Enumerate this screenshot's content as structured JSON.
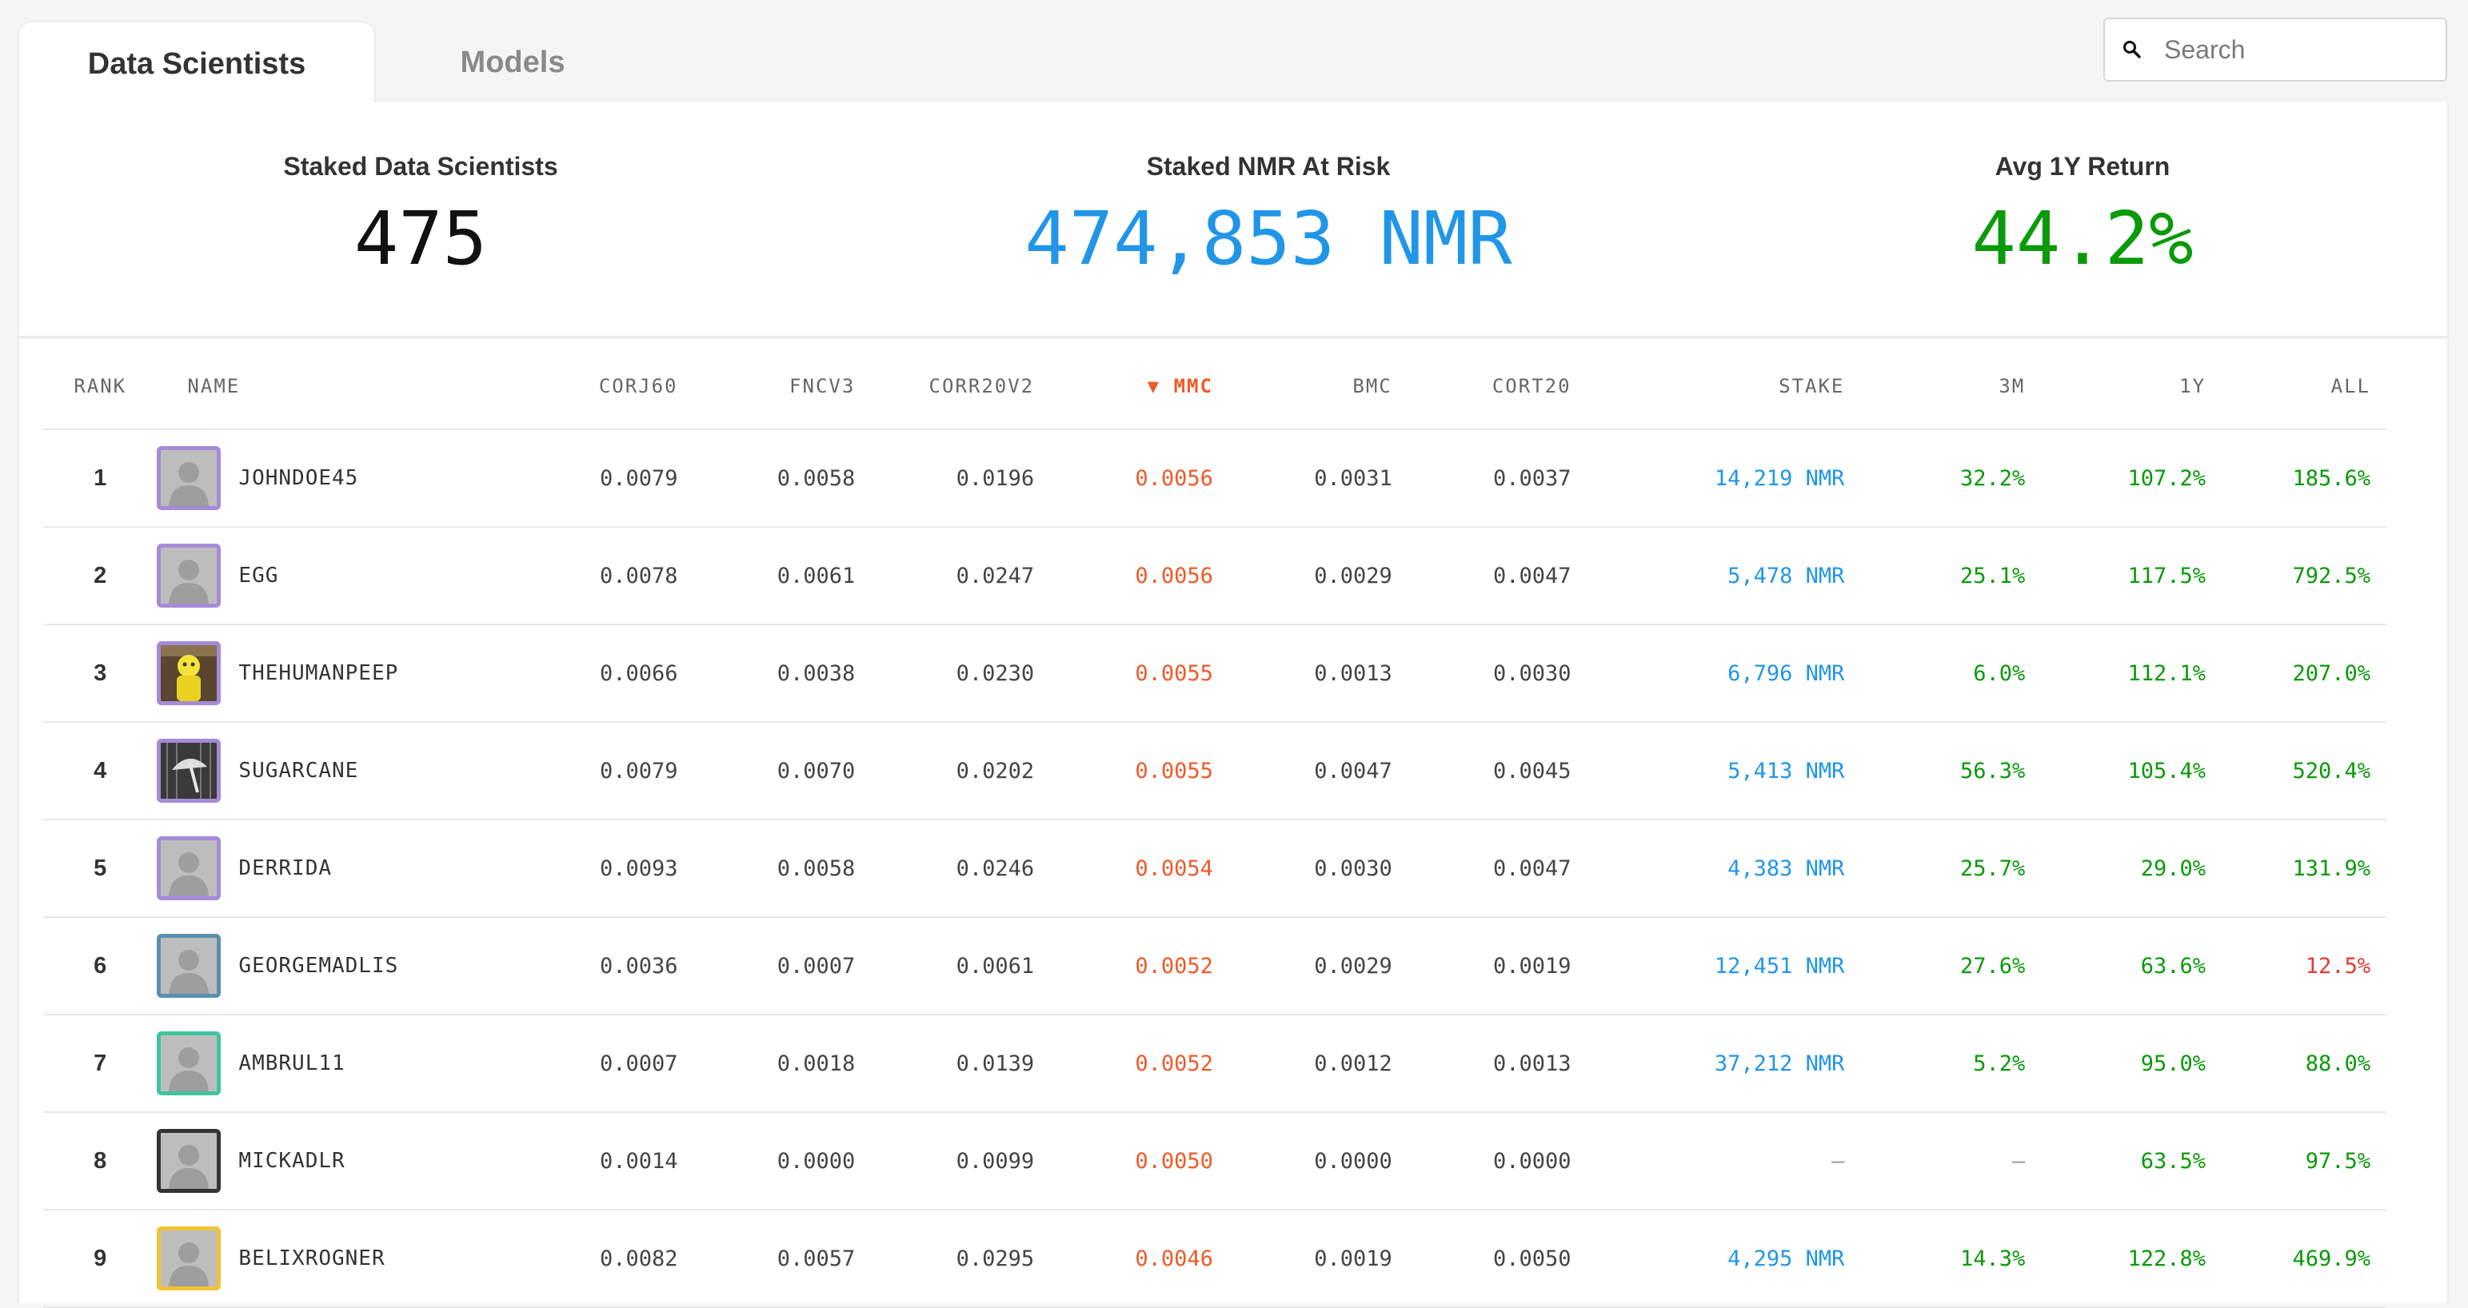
{
  "tabs": [
    {
      "label": "Data Scientists",
      "active": true
    },
    {
      "label": "Models",
      "active": false
    }
  ],
  "search": {
    "placeholder": "Search",
    "value": ""
  },
  "stats": [
    {
      "label": "Staked Data Scientists",
      "value": "475"
    },
    {
      "label": "Staked NMR At Risk",
      "value": "474,853 NMR"
    },
    {
      "label": "Avg 1Y Return",
      "value": "44.2%"
    }
  ],
  "table": {
    "columns": [
      "RANK",
      "NAME",
      "CORJ60",
      "FNCV3",
      "CORR20V2",
      "MMC",
      "BMC",
      "CORT20",
      "STAKE",
      "3M",
      "1Y",
      "ALL"
    ],
    "sort_indicator": "▼",
    "rows": [
      {
        "rank": "1",
        "name": "JOHNDOE45",
        "avatar_color": "#a58ad8",
        "avatar": "placeholder",
        "corj60": "0.0079",
        "fncv3": "0.0058",
        "corr20v2": "0.0196",
        "mmc": "0.0056",
        "bmc": "0.0031",
        "cort20": "0.0037",
        "stake": "14,219 NMR",
        "m3": "32.2%",
        "y1": "107.2%",
        "all": "185.6%"
      },
      {
        "rank": "2",
        "name": "EGG",
        "avatar_color": "#a58ad8",
        "avatar": "placeholder",
        "corj60": "0.0078",
        "fncv3": "0.0061",
        "corr20v2": "0.0247",
        "mmc": "0.0056",
        "bmc": "0.0029",
        "cort20": "0.0047",
        "stake": "5,478 NMR",
        "m3": "25.1%",
        "y1": "117.5%",
        "all": "792.5%"
      },
      {
        "rank": "3",
        "name": "THEHUMANPEEP",
        "avatar_color": "#a58ad8",
        "avatar": "yellow-figure",
        "corj60": "0.0066",
        "fncv3": "0.0038",
        "corr20v2": "0.0230",
        "mmc": "0.0055",
        "bmc": "0.0013",
        "cort20": "0.0030",
        "stake": "6,796 NMR",
        "m3": "6.0%",
        "y1": "112.1%",
        "all": "207.0%"
      },
      {
        "rank": "4",
        "name": "SUGARCANE",
        "avatar_color": "#a58ad8",
        "avatar": "dark-umbrella",
        "corj60": "0.0079",
        "fncv3": "0.0070",
        "corr20v2": "0.0202",
        "mmc": "0.0055",
        "bmc": "0.0047",
        "cort20": "0.0045",
        "stake": "5,413 NMR",
        "m3": "56.3%",
        "y1": "105.4%",
        "all": "520.4%"
      },
      {
        "rank": "5",
        "name": "DERRIDA",
        "avatar_color": "#a58ad8",
        "avatar": "placeholder",
        "corj60": "0.0093",
        "fncv3": "0.0058",
        "corr20v2": "0.0246",
        "mmc": "0.0054",
        "bmc": "0.0030",
        "cort20": "0.0047",
        "stake": "4,383 NMR",
        "m3": "25.7%",
        "y1": "29.0%",
        "all": "131.9%"
      },
      {
        "rank": "6",
        "name": "GEORGEMADLIS",
        "avatar_color": "#5a8fb0",
        "avatar": "placeholder",
        "corj60": "0.0036",
        "fncv3": "0.0007",
        "corr20v2": "0.0061",
        "mmc": "0.0052",
        "bmc": "0.0029",
        "cort20": "0.0019",
        "stake": "12,451 NMR",
        "m3": "27.6%",
        "y1": "63.6%",
        "all": "12.5%",
        "all_negative": true
      },
      {
        "rank": "7",
        "name": "AMBRUL11",
        "avatar_color": "#3fc4a0",
        "avatar": "placeholder",
        "corj60": "0.0007",
        "fncv3": "0.0018",
        "corr20v2": "0.0139",
        "mmc": "0.0052",
        "bmc": "0.0012",
        "cort20": "0.0013",
        "stake": "37,212 NMR",
        "m3": "5.2%",
        "y1": "95.0%",
        "all": "88.0%"
      },
      {
        "rank": "8",
        "name": "MICKADLR",
        "avatar_color": "#333333",
        "avatar": "placeholder",
        "corj60": "0.0014",
        "fncv3": "0.0000",
        "corr20v2": "0.0099",
        "mmc": "0.0050",
        "bmc": "0.0000",
        "cort20": "0.0000",
        "stake": "–",
        "m3": "–",
        "y1": "63.5%",
        "all": "97.5%"
      },
      {
        "rank": "9",
        "name": "BELIXROGNER",
        "avatar_color": "#f2c233",
        "avatar": "placeholder",
        "corj60": "0.0082",
        "fncv3": "0.0057",
        "corr20v2": "0.0295",
        "mmc": "0.0046",
        "bmc": "0.0019",
        "cort20": "0.0050",
        "stake": "4,295 NMR",
        "m3": "14.3%",
        "y1": "122.8%",
        "all": "469.9%"
      }
    ]
  },
  "colors": {
    "accent_blue": "#2196e8",
    "positive_green": "#0a9a0a",
    "negative_red": "#e53935",
    "mmc_orange": "#f05a28"
  },
  "icons": {
    "search": "magnifier-icon"
  }
}
